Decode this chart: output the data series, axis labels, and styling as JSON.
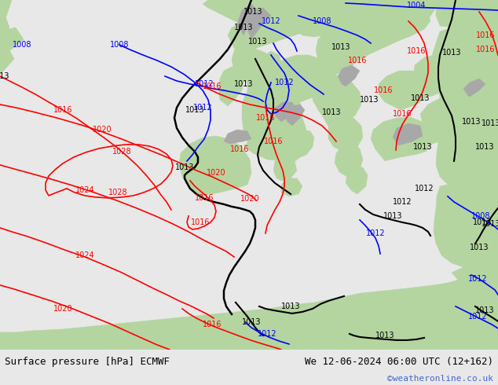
{
  "title_left": "Surface pressure [hPa] ECMWF",
  "title_right": "We 12-06-2024 06:00 UTC (12+162)",
  "copyright": "©weatheronline.co.uk",
  "fig_width": 6.34,
  "fig_height": 4.9,
  "dpi": 100,
  "ocean_color": "#d8d8d8",
  "land_color": "#b4d4a0",
  "land_color2": "#c8e0b4",
  "gray_terrain": "#a8a8a8",
  "bg_color": "#d8d8d8",
  "bottom_bg": "#e8e8e8",
  "text_color": "#000000",
  "text_color_copy": "#4466cc",
  "font_size_bottom": 9,
  "font_size_copy": 8
}
